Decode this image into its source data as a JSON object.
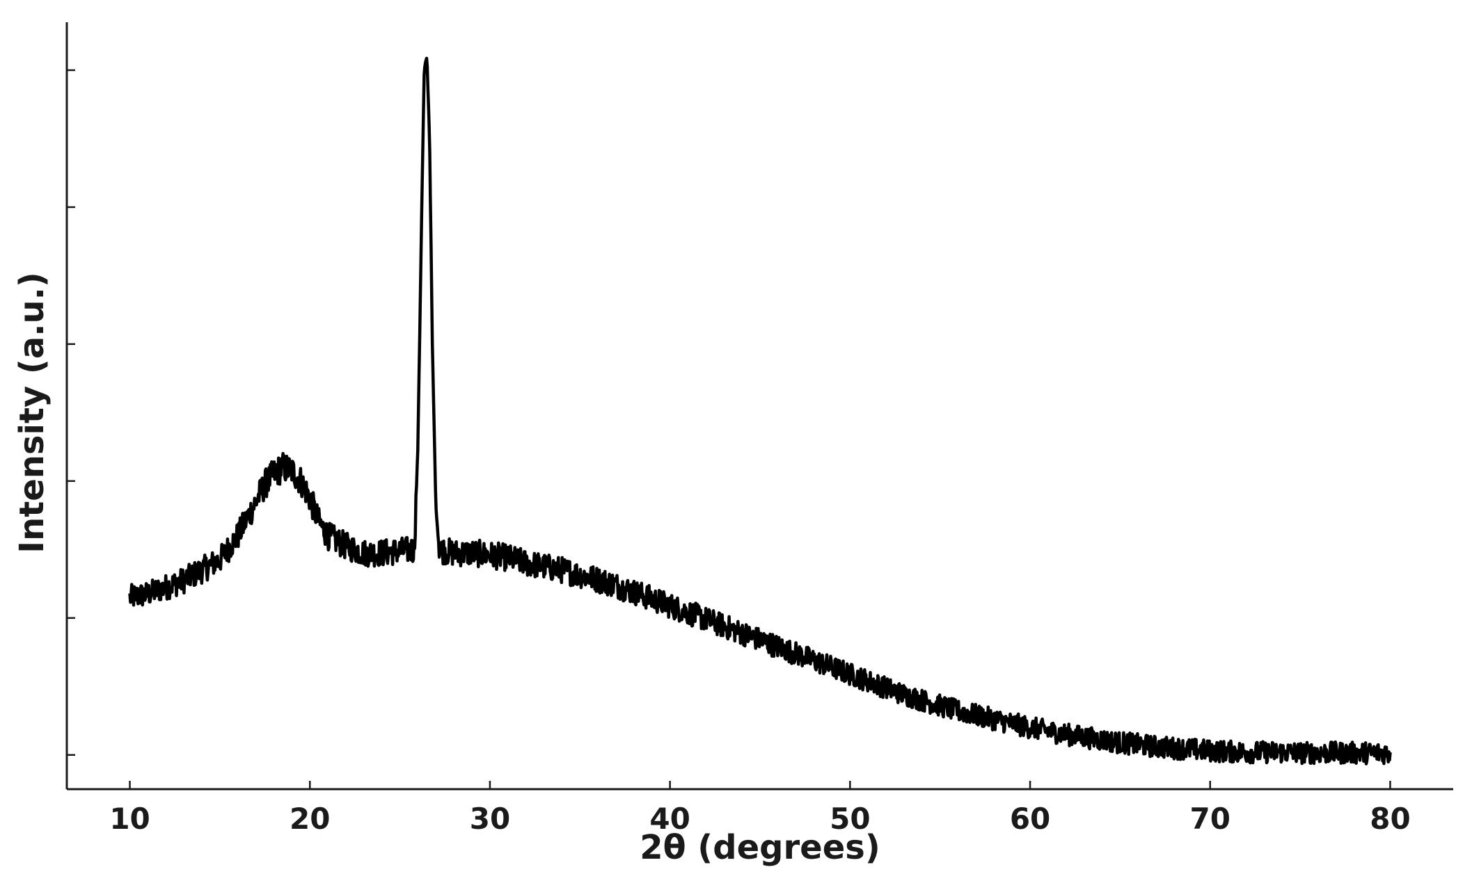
{
  "chart_data": {
    "type": "line",
    "title": "",
    "xlabel": "2θ (degrees)",
    "ylabel": "Intensity (a.u.)",
    "xlim": [
      6.5,
      83.5
    ],
    "ylim": [
      -0.5,
      10.7
    ],
    "xticks": [
      10,
      20,
      30,
      40,
      50,
      60,
      70,
      80
    ],
    "xtick_labels": [
      "10",
      "20",
      "30",
      "40",
      "50",
      "60",
      "70",
      "80"
    ],
    "yticks": [
      0,
      2,
      4,
      6,
      8,
      10
    ],
    "ytick_labels": [
      "",
      "",
      "",
      "",
      "",
      ""
    ],
    "grid": false,
    "legend": "none",
    "series": [
      {
        "color": "#000000",
        "x": [
          10,
          11,
          12,
          13,
          14,
          15,
          16,
          17,
          17.5,
          18,
          18.5,
          19,
          19.5,
          20,
          20.5,
          21,
          22,
          23,
          24,
          25,
          25.8,
          26.0,
          26.2,
          26.35,
          26.5,
          26.65,
          26.8,
          27.0,
          27.2,
          28,
          29,
          30,
          31,
          32,
          33,
          34,
          35,
          36,
          37,
          38,
          39,
          40,
          41,
          42,
          43,
          44,
          45,
          46,
          47,
          48,
          49,
          50,
          51,
          52,
          53,
          54,
          55,
          56,
          57,
          58,
          59,
          60,
          61,
          62,
          63,
          64,
          65,
          66,
          67,
          68,
          69,
          70,
          71,
          72,
          73,
          74,
          75,
          76,
          77,
          78,
          79,
          80
        ],
        "y": [
          2.3,
          2.35,
          2.45,
          2.55,
          2.7,
          2.85,
          3.2,
          3.7,
          3.95,
          4.1,
          4.2,
          4.15,
          4.0,
          3.75,
          3.4,
          3.2,
          3.05,
          2.95,
          2.95,
          2.98,
          3.0,
          4.5,
          7.8,
          10.0,
          10.2,
          9.0,
          6.0,
          3.6,
          3.0,
          2.95,
          2.95,
          2.92,
          2.88,
          2.8,
          2.75,
          2.7,
          2.63,
          2.56,
          2.48,
          2.38,
          2.28,
          2.18,
          2.08,
          1.98,
          1.88,
          1.78,
          1.68,
          1.58,
          1.48,
          1.38,
          1.28,
          1.18,
          1.08,
          0.98,
          0.88,
          0.8,
          0.72,
          0.64,
          0.58,
          0.52,
          0.46,
          0.4,
          0.35,
          0.3,
          0.26,
          0.22,
          0.18,
          0.15,
          0.12,
          0.1,
          0.08,
          0.06,
          0.05,
          0.04,
          0.04,
          0.04,
          0.03,
          0.03,
          0.03,
          0.03,
          0.03,
          0.03
        ]
      }
    ]
  }
}
